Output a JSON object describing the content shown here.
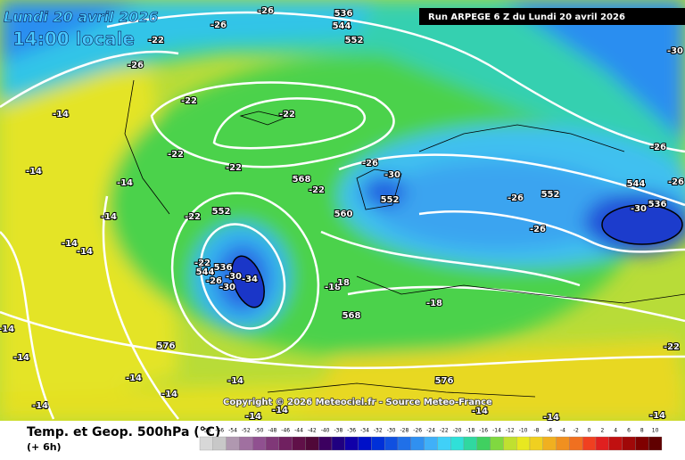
{
  "header": {
    "date": "Lundi 20 avril 2026",
    "time": "14:00 locale",
    "run": "Run ARPEGE 6 Z du Lundi 20 avril 2026"
  },
  "copyright": "Copyright © 2026 Meteociel.fr - Source Meteo-France",
  "map_labels": [
    "-26",
    "-26",
    "536",
    "544",
    "552",
    "-22",
    "-26",
    "-14",
    "-22",
    "-22",
    "-22",
    "-22",
    "568",
    "-22",
    "-14",
    "-14",
    "-14",
    "-22",
    "552",
    "-14",
    "-14",
    "-22",
    "544",
    "536",
    "-26",
    "-30",
    "-34",
    "-30",
    "-18",
    "18",
    "560",
    "552",
    "-30",
    "-26",
    "-26",
    "552",
    "-26",
    "544",
    "536",
    "-30",
    "-26",
    "-26",
    "-18",
    "568",
    "-14",
    "576",
    "-14",
    "-14",
    "-14",
    "-14",
    "-14",
    "576",
    "-14",
    "-14",
    "-14",
    "-22",
    "-30",
    "-14",
    "-14"
  ],
  "legend": {
    "title": "Temp. et Geop. 500hPa (°C)",
    "step": "(+ 6h)",
    "scale": [
      -58,
      -56,
      -54,
      -52,
      -50,
      -48,
      -46,
      -44,
      -42,
      -40,
      -38,
      -36,
      -34,
      -32,
      -30,
      -28,
      -26,
      -24,
      -22,
      -20,
      -18,
      -16,
      -14,
      -12,
      -10,
      -8,
      -6,
      -4,
      -2,
      0,
      2,
      4,
      6,
      8,
      10
    ]
  }
}
